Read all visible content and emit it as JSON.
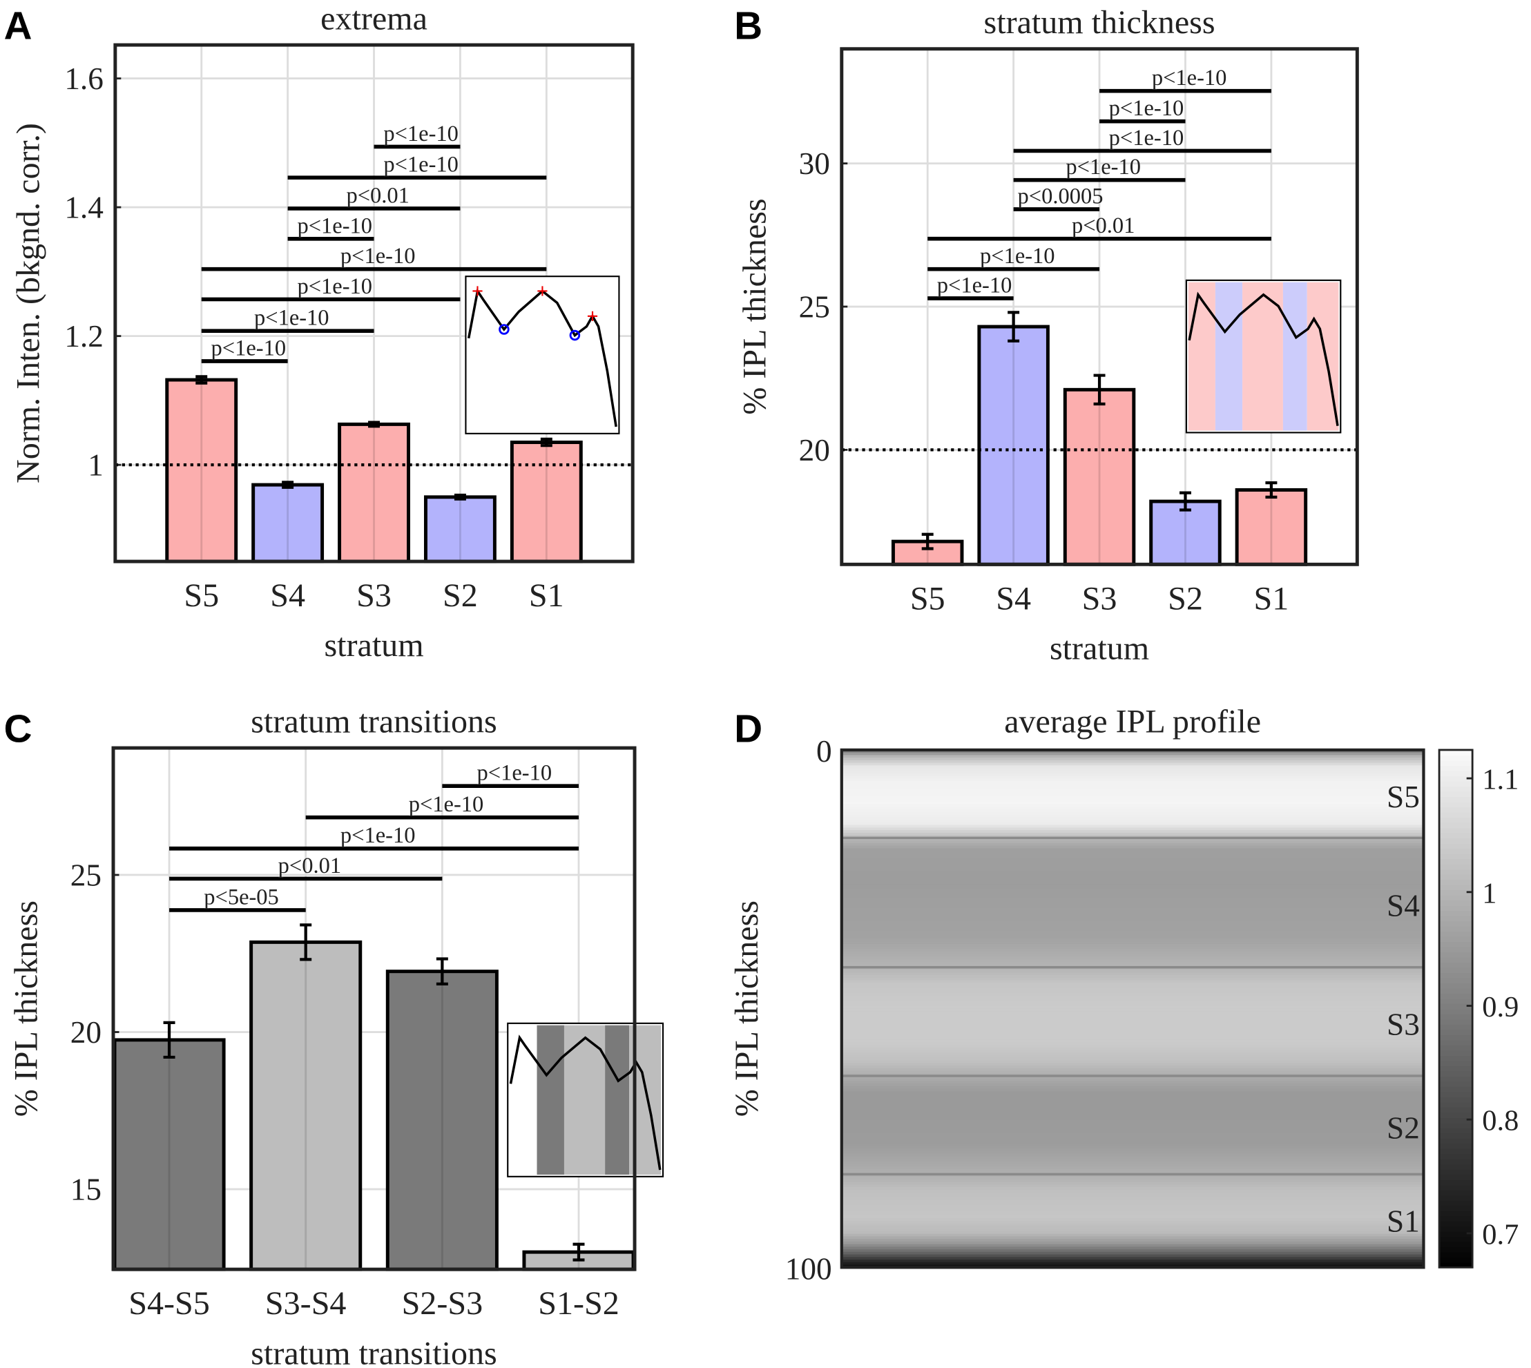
{
  "panel_letters": [
    "A",
    "B",
    "C",
    "D"
  ],
  "colors": {
    "pink": "#fcaeae",
    "blue": "#b3b3fc",
    "dark_gray": "#7a7a7a",
    "light_gray": "#bdbdbd"
  },
  "chart_data": [
    {
      "id": "A",
      "type": "bar",
      "title": "extrema",
      "xlabel": "stratum",
      "ylabel": "Norm. Inten. (bkgnd. corr.)",
      "categories": [
        "S5",
        "S4",
        "S3",
        "S2",
        "S1"
      ],
      "values": [
        1.132,
        0.969,
        1.063,
        0.95,
        1.035
      ],
      "errors": [
        0.005,
        0.004,
        0.003,
        0.003,
        0.005
      ],
      "bar_colors": [
        "pink",
        "blue",
        "pink",
        "blue",
        "pink"
      ],
      "ylim": [
        0.85,
        1.652
      ],
      "yticks": [
        1,
        1.2,
        1.4,
        1.6
      ],
      "ytick_labels": [
        "1",
        "1.2",
        "1.4",
        "1.6"
      ],
      "reference_line": 1,
      "grid": true,
      "significance": [
        {
          "from": "S3",
          "to": "S2",
          "y": 1.494,
          "label": "p<1e-10"
        },
        {
          "from": "S4",
          "to": "S1",
          "y": 1.446,
          "label": "p<1e-10"
        },
        {
          "from": "S4",
          "to": "S2",
          "y": 1.398,
          "label": "p<0.01"
        },
        {
          "from": "S4",
          "to": "S3",
          "y": 1.351,
          "label": "p<1e-10"
        },
        {
          "from": "S5",
          "to": "S1",
          "y": 1.304,
          "label": "p<1e-10"
        },
        {
          "from": "S5",
          "to": "S2",
          "y": 1.257,
          "label": "p<1e-10"
        },
        {
          "from": "S5",
          "to": "S3",
          "y": 1.208,
          "label": "p<1e-10"
        },
        {
          "from": "S5",
          "to": "S4",
          "y": 1.161,
          "label": "p<1e-10"
        }
      ]
    },
    {
      "id": "B",
      "type": "bar",
      "title": "stratum thickness",
      "xlabel": "stratum",
      "ylabel": "% IPL thickness",
      "categories": [
        "S5",
        "S4",
        "S3",
        "S2",
        "S1"
      ],
      "values": [
        16.8,
        24.3,
        22.1,
        18.2,
        18.6
      ],
      "errors": [
        0.25,
        0.5,
        0.5,
        0.3,
        0.25
      ],
      "bar_colors": [
        "pink",
        "blue",
        "pink",
        "blue",
        "pink"
      ],
      "ylim": [
        16.0,
        34.0
      ],
      "yticks": [
        20,
        25,
        30
      ],
      "ytick_labels": [
        "20",
        "25",
        "30"
      ],
      "reference_line": 20,
      "grid": true,
      "significance": [
        {
          "from": "S3",
          "to": "S1",
          "y": 32.53,
          "label": "p<1e-10"
        },
        {
          "from": "S3",
          "to": "S2",
          "y": 31.47,
          "label": "p<1e-10"
        },
        {
          "from": "S4",
          "to": "S1",
          "y": 30.44,
          "label": "p<1e-10"
        },
        {
          "from": "S4",
          "to": "S2",
          "y": 29.42,
          "label": "p<1e-10"
        },
        {
          "from": "S4",
          "to": "S3",
          "y": 28.4,
          "label": "p<0.0005"
        },
        {
          "from": "S5",
          "to": "S1",
          "y": 27.37,
          "label": "p<0.01"
        },
        {
          "from": "S5",
          "to": "S3",
          "y": 26.31,
          "label": "p<1e-10"
        },
        {
          "from": "S5",
          "to": "S4",
          "y": 25.29,
          "label": "p<1e-10"
        }
      ]
    },
    {
      "id": "C",
      "type": "bar",
      "title": "stratum transitions",
      "xlabel": "stratum transitions",
      "ylabel": "% IPL thickness",
      "categories": [
        "S4-S5",
        "S3-S4",
        "S2-S3",
        "S1-S2"
      ],
      "values": [
        19.75,
        22.86,
        21.93,
        13.0
      ],
      "errors": [
        0.55,
        0.55,
        0.4,
        0.25
      ],
      "bar_colors": [
        "dark_gray",
        "light_gray",
        "dark_gray",
        "light_gray"
      ],
      "ylim": [
        12.45,
        29.04
      ],
      "yticks": [
        15,
        20,
        25
      ],
      "ytick_labels": [
        "15",
        "20",
        "25"
      ],
      "grid": true,
      "significance": [
        {
          "from": "S2-S3",
          "to": "S1-S2",
          "y": 27.83,
          "label": "p<1e-10"
        },
        {
          "from": "S3-S4",
          "to": "S1-S2",
          "y": 26.83,
          "label": "p<1e-10"
        },
        {
          "from": "S4-S5",
          "to": "S1-S2",
          "y": 25.84,
          "label": "p<1e-10"
        },
        {
          "from": "S4-S5",
          "to": "S2-S3",
          "y": 24.88,
          "label": "p<0.01"
        },
        {
          "from": "S4-S5",
          "to": "S3-S4",
          "y": 23.88,
          "label": "p<5e-05"
        }
      ]
    },
    {
      "id": "D",
      "type": "heatmap",
      "title": "average IPL profile",
      "ylabel": "% IPL thickness",
      "yticks": [
        0,
        100
      ],
      "ytick_labels": [
        "0",
        "100"
      ],
      "strata_labels": [
        {
          "label": "S5",
          "depth": 9
        },
        {
          "label": "S4",
          "depth": 30
        },
        {
          "label": "S3",
          "depth": 53
        },
        {
          "label": "S2",
          "depth": 73
        },
        {
          "label": "S1",
          "depth": 91
        }
      ],
      "boundaries": [
        17,
        42,
        63,
        82
      ],
      "profile": [
        [
          0,
          0.9
        ],
        [
          1,
          1.0
        ],
        [
          3,
          1.09
        ],
        [
          6,
          1.11
        ],
        [
          10,
          1.115
        ],
        [
          14,
          1.1
        ],
        [
          17,
          1.0
        ],
        [
          19,
          0.96
        ],
        [
          25,
          0.955
        ],
        [
          30,
          0.96
        ],
        [
          36,
          0.965
        ],
        [
          42,
          1.0
        ],
        [
          45,
          1.03
        ],
        [
          50,
          1.04
        ],
        [
          56,
          1.04
        ],
        [
          60,
          1.02
        ],
        [
          63,
          0.98
        ],
        [
          66,
          0.95
        ],
        [
          70,
          0.95
        ],
        [
          76,
          0.955
        ],
        [
          82,
          0.99
        ],
        [
          85,
          1.02
        ],
        [
          90,
          1.03
        ],
        [
          93,
          1.01
        ],
        [
          95,
          0.95
        ],
        [
          97,
          0.85
        ],
        [
          98.5,
          0.75
        ],
        [
          100,
          0.68
        ]
      ],
      "colorbar": {
        "range": [
          0.67,
          1.125
        ],
        "ticks": [
          0.7,
          0.8,
          0.9,
          1,
          1.1
        ],
        "tick_labels": [
          "0.7",
          "0.8",
          "0.9",
          "1",
          "1.1"
        ]
      }
    }
  ]
}
